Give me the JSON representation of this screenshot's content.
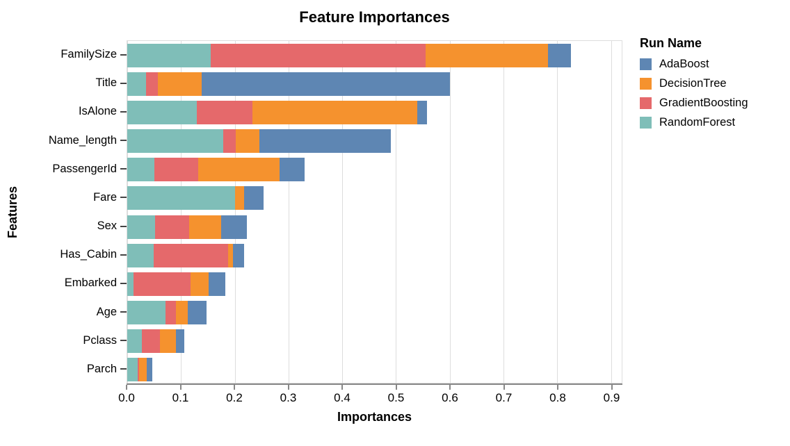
{
  "title": "Feature Importances",
  "legend": {
    "title": "Run Name",
    "position": "right",
    "items": [
      {
        "label": "AdaBoost",
        "color": "#5E86B3"
      },
      {
        "label": "DecisionTree",
        "color": "#F5922E"
      },
      {
        "label": "GradientBoosting",
        "color": "#E5696B"
      },
      {
        "label": "RandomForest",
        "color": "#7FBEB8"
      }
    ]
  },
  "colors": {
    "grid": "#DDDDDD",
    "plot_border": "#DDDDDD",
    "axis_line": "#888888",
    "y_tick_mark": "#444444",
    "text": "#000000",
    "background": "#FFFFFF"
  },
  "chart_data": {
    "type": "bar",
    "orientation": "horizontal",
    "stacked": true,
    "title": "Feature Importances",
    "xlabel": "Importances",
    "ylabel": "Features",
    "xlim": [
      0,
      0.92
    ],
    "xticks": [
      0.0,
      0.1,
      0.2,
      0.3,
      0.4,
      0.5,
      0.6,
      0.7,
      0.8,
      0.9
    ],
    "grid": true,
    "legend_position": "right",
    "categories": [
      "FamilySize",
      "Title",
      "IsAlone",
      "Name_length",
      "PassengerId",
      "Fare",
      "Sex",
      "Has_Cabin",
      "Embarked",
      "Age",
      "Pclass",
      "Parch"
    ],
    "series": [
      {
        "name": "RandomForest",
        "color": "#7FBEB8",
        "values": [
          0.155,
          0.035,
          0.13,
          0.178,
          0.05,
          0.2,
          0.052,
          0.049,
          0.011,
          0.071,
          0.027,
          0.02
        ]
      },
      {
        "name": "GradientBoosting",
        "color": "#E5696B",
        "values": [
          0.4,
          0.022,
          0.103,
          0.024,
          0.082,
          0.0,
          0.063,
          0.139,
          0.107,
          0.02,
          0.034,
          0.002
        ]
      },
      {
        "name": "DecisionTree",
        "color": "#F5922E",
        "values": [
          0.228,
          0.081,
          0.307,
          0.044,
          0.152,
          0.017,
          0.06,
          0.009,
          0.034,
          0.021,
          0.03,
          0.014
        ]
      },
      {
        "name": "AdaBoost",
        "color": "#5E86B3",
        "values": [
          0.042,
          0.462,
          0.018,
          0.245,
          0.046,
          0.036,
          0.047,
          0.021,
          0.031,
          0.036,
          0.015,
          0.01
        ]
      }
    ],
    "totals": [
      0.825,
      0.6,
      0.558,
      0.491,
      0.33,
      0.253,
      0.222,
      0.218,
      0.183,
      0.148,
      0.106,
      0.046
    ]
  }
}
